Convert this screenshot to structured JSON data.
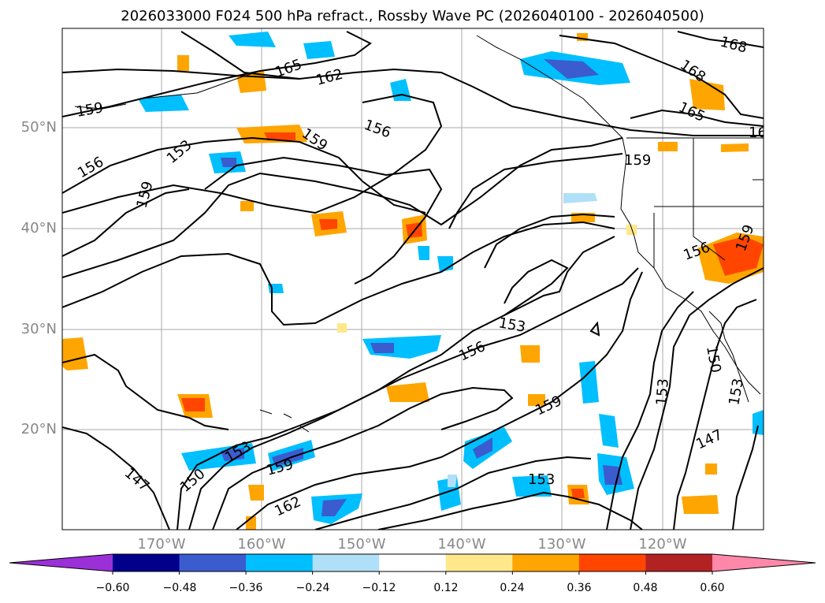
{
  "title": "2026033000 F024 500 hPa refract., Rossby Wave PC (2026040100 - 2026040500)",
  "map": {
    "lat_labels": [
      "50°N",
      "40°N",
      "30°N",
      "20°N"
    ],
    "lon_labels": [
      "170°W",
      "160°W",
      "150°W",
      "140°W",
      "130°W",
      "120°W"
    ],
    "contour_labels": [
      {
        "text": "165",
        "rot": -20
      },
      {
        "text": "162",
        "rot": -15
      },
      {
        "text": "159",
        "rot": -10
      },
      {
        "text": "153",
        "rot": -40
      },
      {
        "text": "156",
        "rot": -30
      },
      {
        "text": "159",
        "rot": -75
      },
      {
        "text": "159",
        "rot": 35
      },
      {
        "text": "156",
        "rot": 20
      },
      {
        "text": "168",
        "rot": 15
      },
      {
        "text": "168",
        "rot": 35
      },
      {
        "text": "165",
        "rot": 25
      },
      {
        "text": "16",
        "rot": 0
      },
      {
        "text": "159",
        "rot": 0
      },
      {
        "text": "156",
        "rot": -20
      },
      {
        "text": "159",
        "rot": -70
      },
      {
        "text": "153",
        "rot": 10
      },
      {
        "text": "156",
        "rot": -25
      },
      {
        "text": "159",
        "rot": -25
      },
      {
        "text": "153",
        "rot": 0
      },
      {
        "text": "153",
        "rot": -85
      },
      {
        "text": "150",
        "rot": 80
      },
      {
        "text": "153",
        "rot": -80
      },
      {
        "text": "147",
        "rot": -25
      },
      {
        "text": "147",
        "rot": 40
      },
      {
        "text": "150",
        "rot": -40
      },
      {
        "text": "153",
        "rot": -30
      },
      {
        "text": "159",
        "rot": -15
      },
      {
        "text": "162",
        "rot": -25
      }
    ]
  },
  "colorbar": {
    "labels": [
      "−0.60",
      "−0.48",
      "−0.36",
      "−0.24",
      "−0.12",
      "0.12",
      "0.24",
      "0.36",
      "0.48",
      "0.60"
    ],
    "colors": [
      "#9b30d8",
      "#00008b",
      "#3a5ccf",
      "#00bfff",
      "#b0e0f8",
      "#ffffff",
      "#ffe88a",
      "#ffa500",
      "#ff4500",
      "#b22222",
      "#ff88aa"
    ],
    "range": [
      -0.72,
      0.72
    ]
  }
}
